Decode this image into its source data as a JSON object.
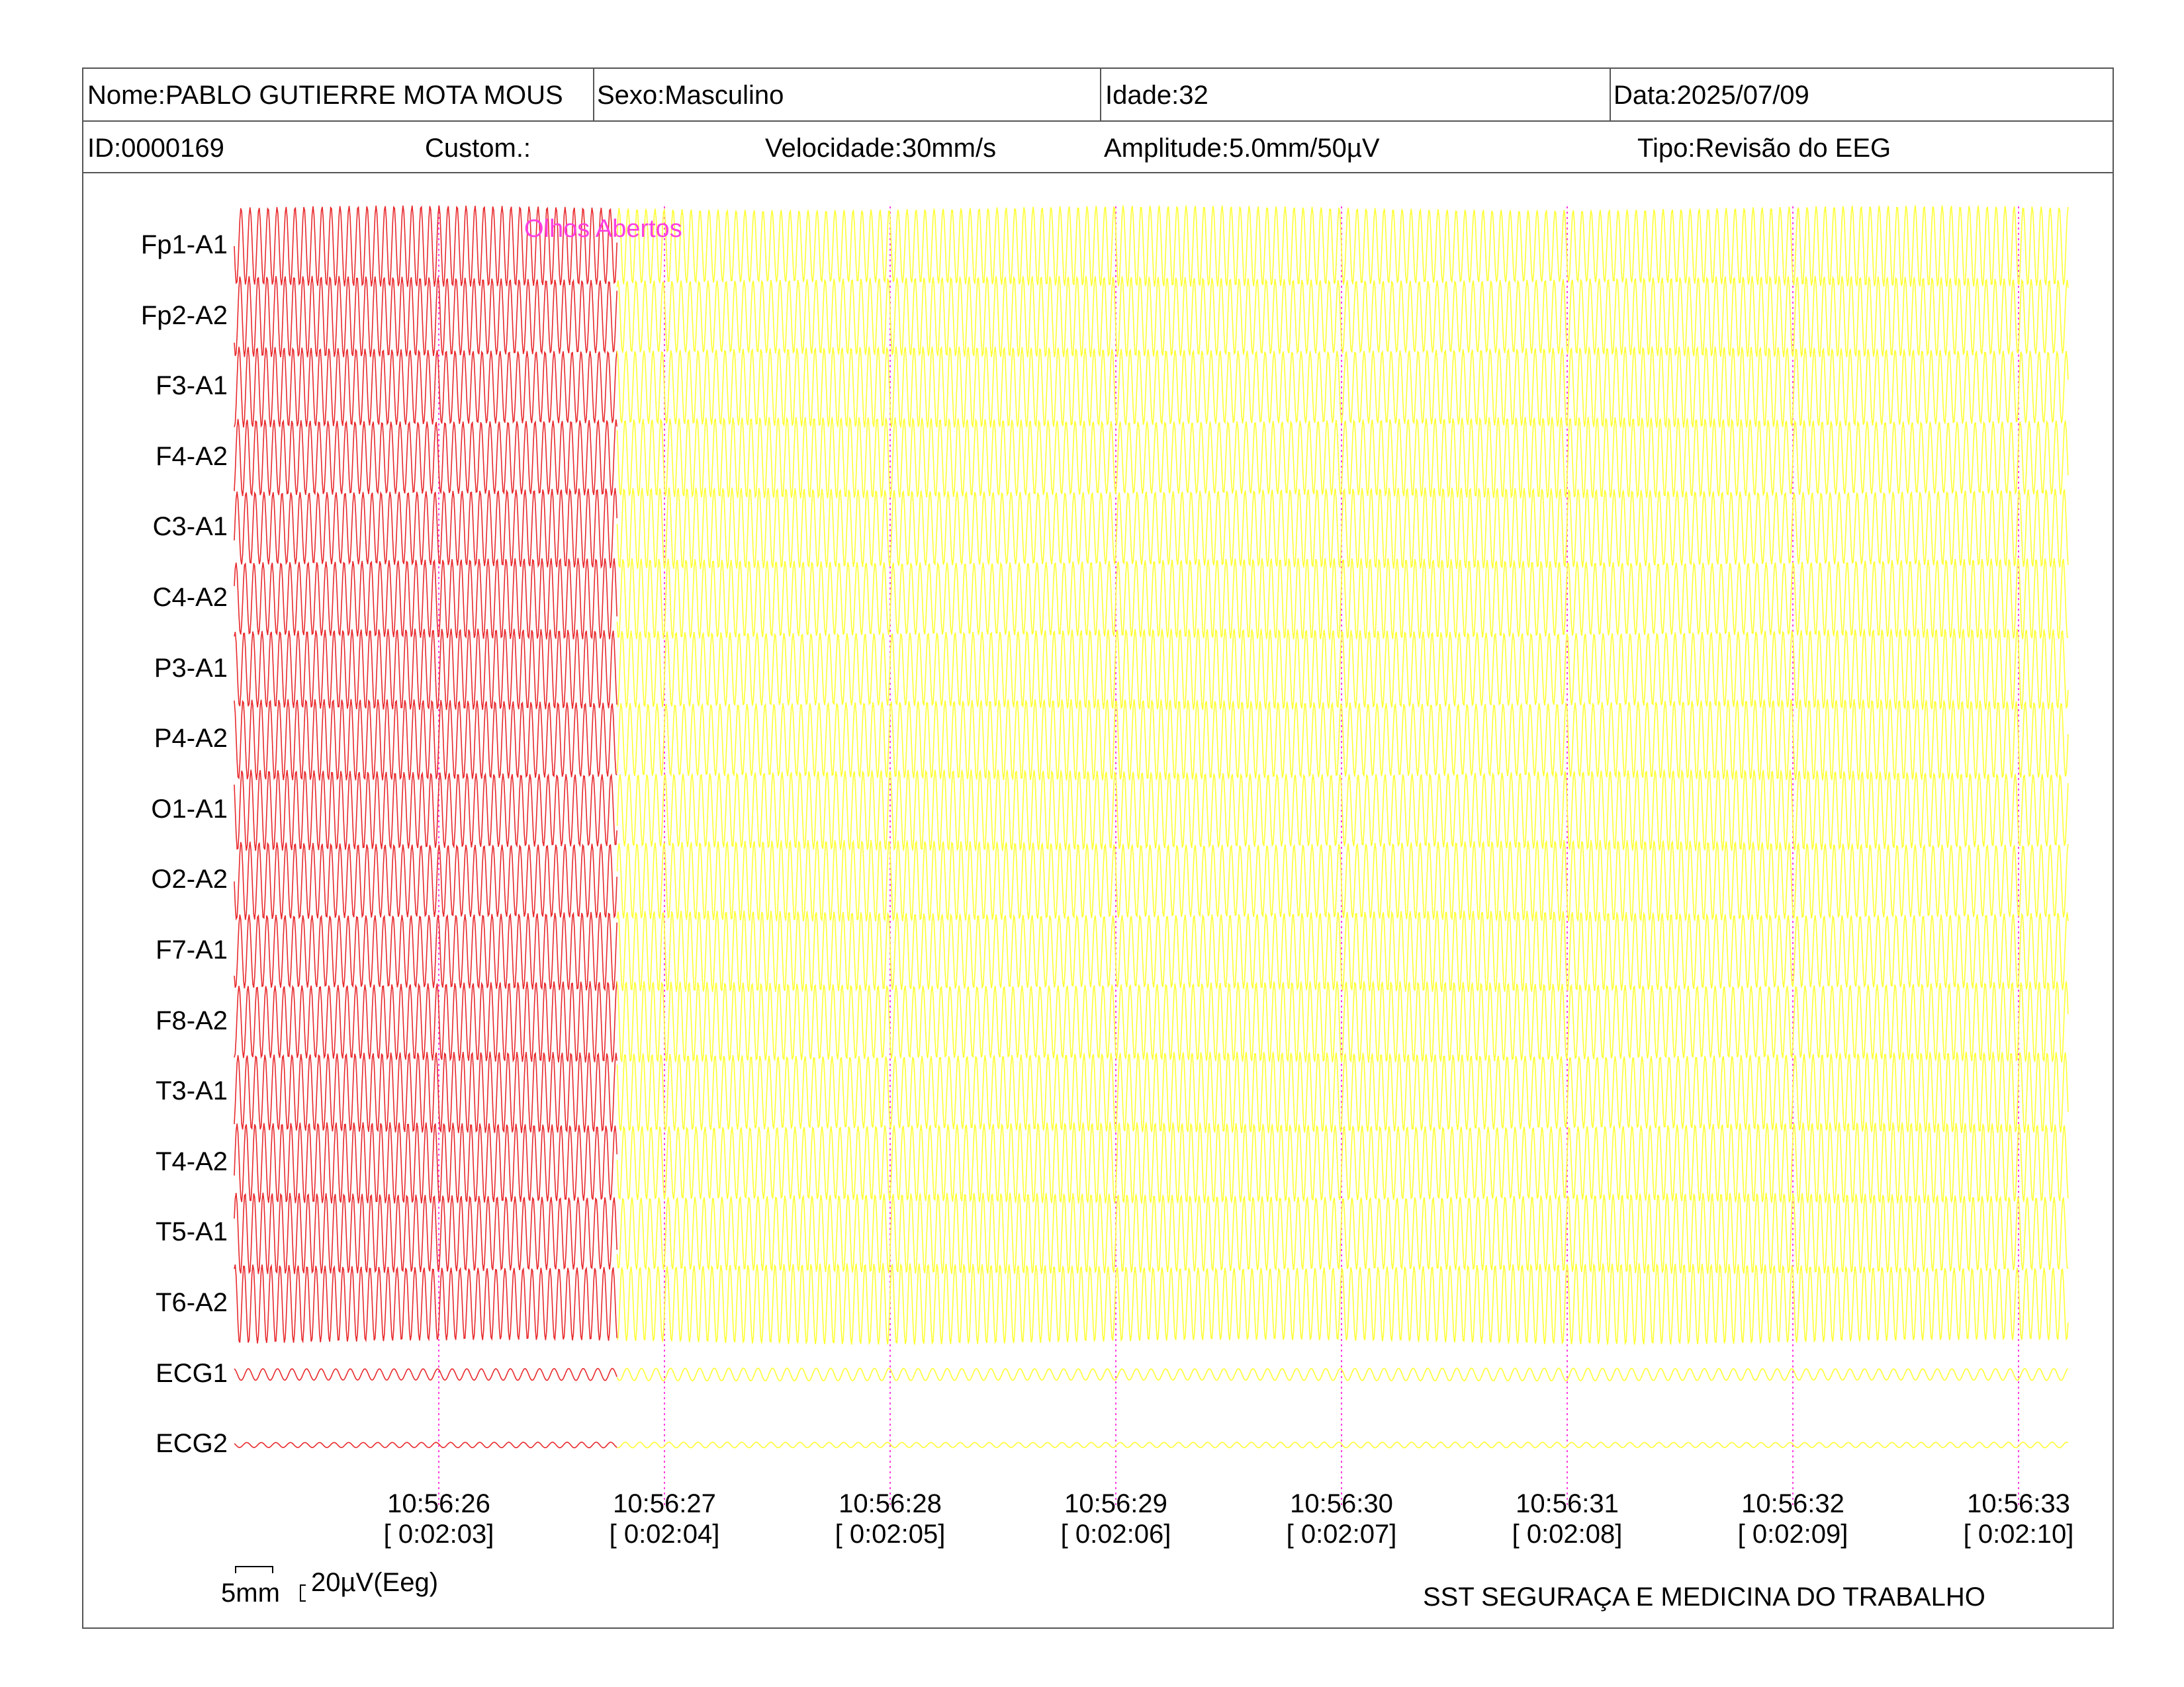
{
  "header": {
    "name": "Nome:PABLO GUTIERRE MOTA MOUS",
    "sex": "Sexo:Masculino",
    "age": "Idade:32",
    "date": "Data:2025/07/09",
    "id": "ID:0000169",
    "custom": "Custom.:",
    "speed": "Velocidade:30mm/s",
    "amplitude": "Amplitude:5.0mm/50µV",
    "type": "Tipo:Revisão do EEG"
  },
  "chart_data": {
    "type": "line",
    "channels": [
      "Fp1-A1",
      "Fp2-A2",
      "F3-A1",
      "F4-A2",
      "C3-A1",
      "C4-A2",
      "P3-A1",
      "P4-A2",
      "O1-A1",
      "O2-A2",
      "F7-A1",
      "F8-A2",
      "T3-A1",
      "T4-A2",
      "T5-A1",
      "T6-A2",
      "ECG1",
      "ECG2"
    ],
    "time_ticks": [
      {
        "clock": "10:56:26",
        "elapsed": "[ 0:02:03]"
      },
      {
        "clock": "10:56:27",
        "elapsed": "[ 0:02:04]"
      },
      {
        "clock": "10:56:28",
        "elapsed": "[ 0:02:05]"
      },
      {
        "clock": "10:56:29",
        "elapsed": "[ 0:02:06]"
      },
      {
        "clock": "10:56:30",
        "elapsed": "[ 0:02:07]"
      },
      {
        "clock": "10:56:31",
        "elapsed": "[ 0:02:08]"
      },
      {
        "clock": "10:56:32",
        "elapsed": "[ 0:02:09]"
      },
      {
        "clock": "10:56:33",
        "elapsed": "[ 0:02:10]"
      }
    ],
    "annotation": "Olhos Abertos",
    "segments": [
      {
        "color": "#e8292c",
        "t_start": 0.0,
        "t_end": 0.2087
      },
      {
        "color": "#ffff33",
        "t_start": 0.2087,
        "t_end": 1.0
      }
    ],
    "marker_color": "#ff3ee0",
    "grid": "vertical-dotted"
  },
  "scale": {
    "time_label": "5mm",
    "amp_label": "20µV(Eeg)"
  },
  "footer": {
    "company": "SST SEGURAÇA E MEDICINA DO TRABALHO"
  }
}
